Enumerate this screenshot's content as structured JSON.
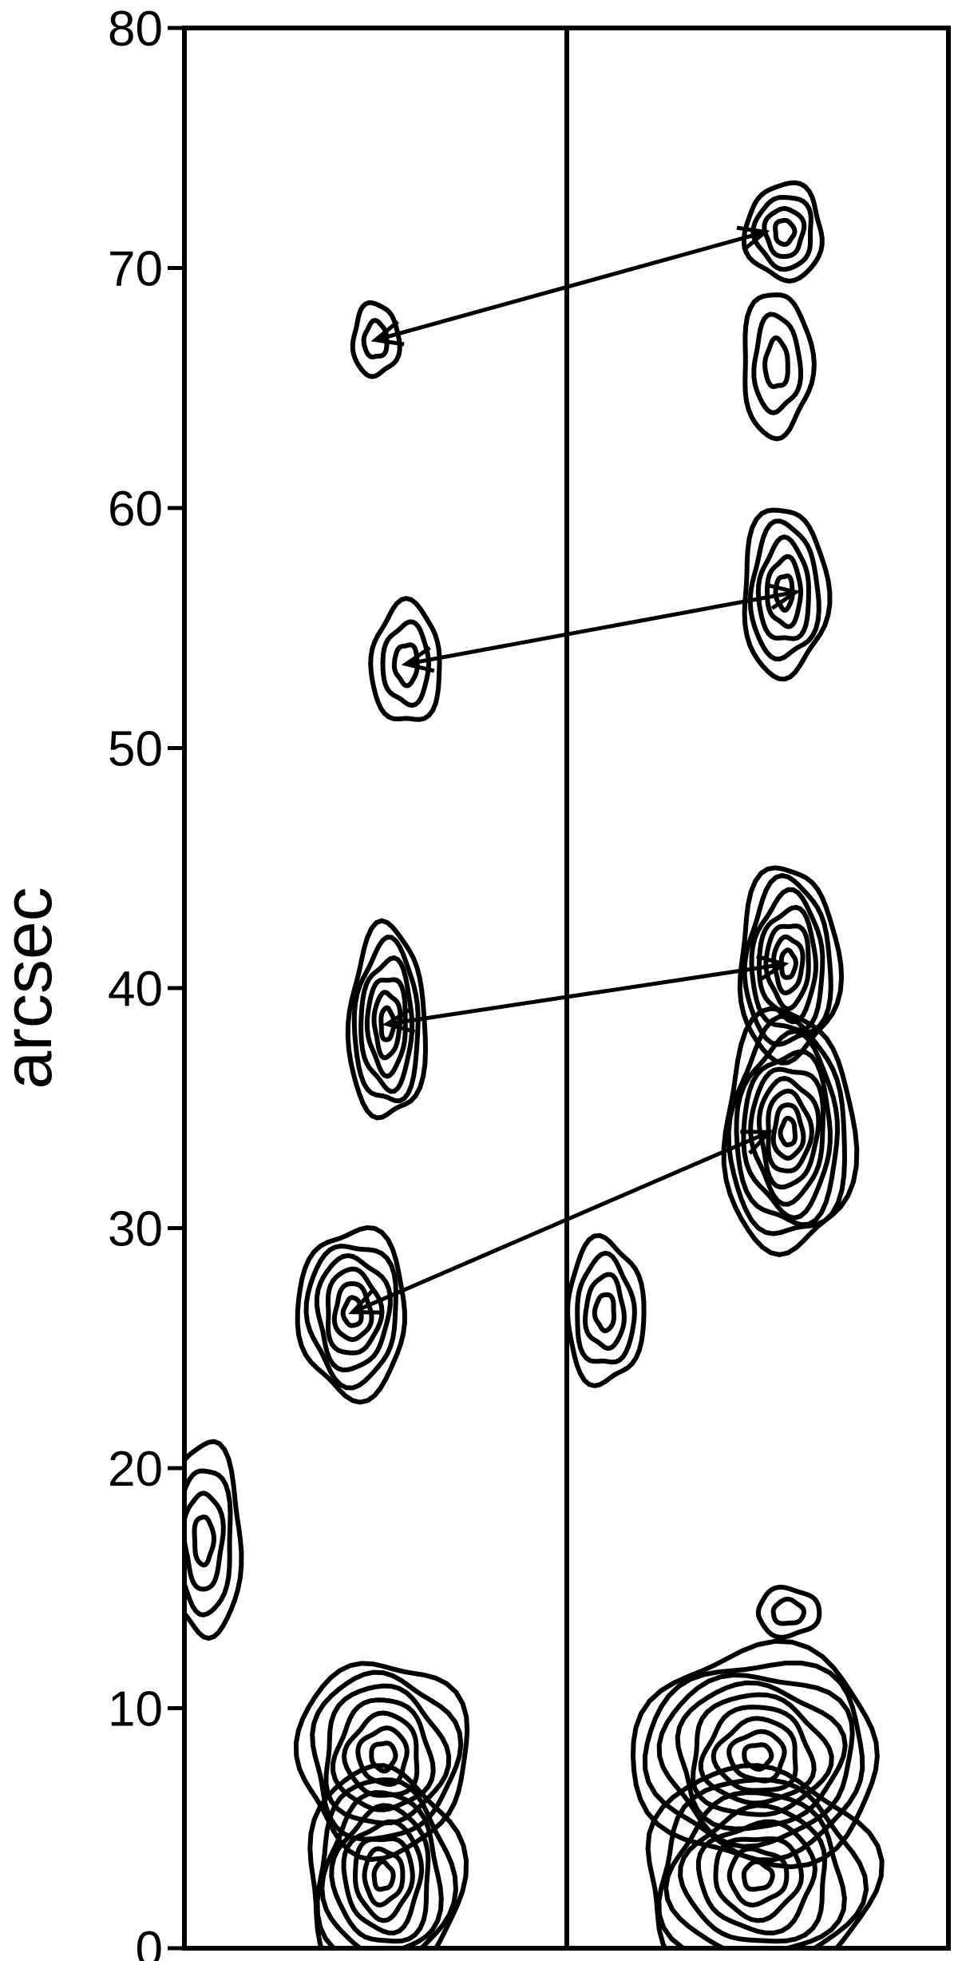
{
  "chart_data": {
    "type": "contour",
    "ylabel": "arcsec",
    "ylim": [
      0,
      80
    ],
    "yticks": [
      0,
      10,
      20,
      30,
      40,
      50,
      60,
      70,
      80
    ],
    "grid": false,
    "legend": "none",
    "panels": [
      {
        "id": "left",
        "peaks": [
          {
            "x": 0.52,
            "y": 3,
            "levels": 8,
            "sx": 0.2,
            "sy": 4.5
          },
          {
            "x": 0.52,
            "y": 8,
            "levels": 7,
            "sx": 0.22,
            "sy": 4.0
          },
          {
            "x": 0.44,
            "y": 26.5,
            "levels": 6,
            "sx": 0.14,
            "sy": 3.5
          },
          {
            "x": 0.53,
            "y": 38.5,
            "levels": 6,
            "sx": 0.1,
            "sy": 4.0
          },
          {
            "x": 0.58,
            "y": 53.5,
            "levels": 3,
            "sx": 0.09,
            "sy": 2.5
          },
          {
            "x": 0.5,
            "y": 67,
            "levels": 2,
            "sx": 0.06,
            "sy": 1.5
          },
          {
            "x": 0.05,
            "y": 17,
            "levels": 4,
            "sx": 0.1,
            "sy": 4.0
          }
        ]
      },
      {
        "id": "right",
        "peaks": [
          {
            "x": 0.5,
            "y": 3,
            "levels": 8,
            "sx": 0.3,
            "sy": 4.5
          },
          {
            "x": 0.5,
            "y": 8,
            "levels": 9,
            "sx": 0.32,
            "sy": 4.5
          },
          {
            "x": 0.58,
            "y": 34,
            "levels": 9,
            "sx": 0.17,
            "sy": 5.0
          },
          {
            "x": 0.58,
            "y": 41,
            "levels": 7,
            "sx": 0.13,
            "sy": 4.0
          },
          {
            "x": 0.57,
            "y": 56.5,
            "levels": 5,
            "sx": 0.11,
            "sy": 3.5
          },
          {
            "x": 0.55,
            "y": 66,
            "levels": 3,
            "sx": 0.09,
            "sy": 3.0
          },
          {
            "x": 0.57,
            "y": 71.5,
            "levels": 4,
            "sx": 0.1,
            "sy": 2.0
          },
          {
            "x": 0.1,
            "y": 26.5,
            "levels": 4,
            "sx": 0.1,
            "sy": 3.0
          },
          {
            "x": 0.58,
            "y": 14,
            "levels": 2,
            "sx": 0.08,
            "sy": 1.0
          }
        ]
      }
    ],
    "arrows": [
      {
        "from": {
          "panel": "left",
          "x": 0.5,
          "y": 67
        },
        "to": {
          "panel": "right",
          "x": 0.52,
          "y": 71.5
        }
      },
      {
        "from": {
          "panel": "left",
          "x": 0.58,
          "y": 53.5
        },
        "to": {
          "panel": "right",
          "x": 0.6,
          "y": 56.5
        }
      },
      {
        "from": {
          "panel": "left",
          "x": 0.53,
          "y": 38.5
        },
        "to": {
          "panel": "right",
          "x": 0.57,
          "y": 41
        }
      },
      {
        "from": {
          "panel": "left",
          "x": 0.44,
          "y": 26.5
        },
        "to": {
          "panel": "right",
          "x": 0.53,
          "y": 34
        }
      }
    ]
  }
}
